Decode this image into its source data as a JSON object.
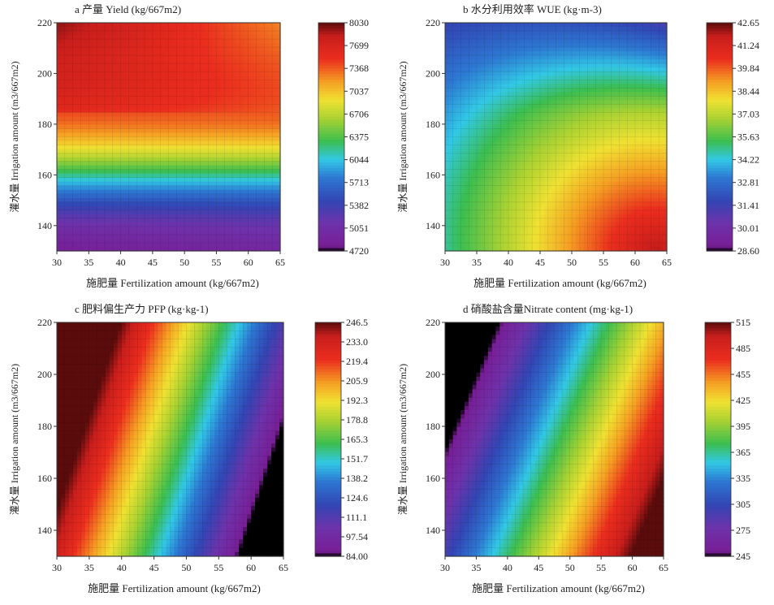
{
  "chart_data": [
    {
      "type": "heatmap",
      "panel": "a",
      "title": "a  产量 Yield (kg/667m2)",
      "xlabel": "施肥量  Fertilization amount (kg/667m2)",
      "ylabel": "灌水量 Irrigation amount (m3/667m2)",
      "xlim": [
        30,
        65
      ],
      "ylim": [
        130,
        220
      ],
      "xticks": [
        "30",
        "35",
        "40",
        "45",
        "50",
        "55",
        "60",
        "65"
      ],
      "yticks": [
        "140",
        "160",
        "180",
        "200",
        "220"
      ],
      "colorbar_range": [
        4720,
        8030
      ],
      "colorbar_ticks": [
        "8030",
        "7699",
        "7368",
        "7037",
        "6706",
        "6375",
        "6044",
        "5713",
        "5382",
        "5051",
        "4720"
      ],
      "description_values": {
        "top_left_corner": 8000,
        "top_band": 7200,
        "middle_band": 6044,
        "low_band": 5200,
        "bottom": 4800
      }
    },
    {
      "type": "heatmap",
      "panel": "b",
      "title": "b  水分利用效率 WUE (kg·m-3)",
      "xlabel": "施肥量  Fertilization amount (kg/667m2)",
      "ylabel": "灌水量 Irrigation amount (m3/667m2)",
      "xlim": [
        30,
        65
      ],
      "ylim": [
        130,
        220
      ],
      "xticks": [
        "30",
        "35",
        "40",
        "45",
        "50",
        "55",
        "60",
        "65"
      ],
      "yticks": [
        "140",
        "160",
        "180",
        "200",
        "220"
      ],
      "colorbar_range": [
        28.6,
        42.65
      ],
      "colorbar_ticks": [
        "42.65",
        "41.24",
        "39.84",
        "38.44",
        "37.03",
        "35.63",
        "34.22",
        "32.81",
        "31.41",
        "30.01",
        "28.60"
      ],
      "description_values": {
        "bottom_right_corner": 42.5,
        "center_right": 39,
        "top_right_corner": 29,
        "left_edge": 33
      }
    },
    {
      "type": "heatmap",
      "panel": "c",
      "title": "c  肥料偏生产力 PFP (kg·kg-1)",
      "xlabel": "施肥量  Fertilization amount (kg/667m2)",
      "ylabel": "灌水量 Irrigation amount (m3/667m2)",
      "xlim": [
        30,
        65
      ],
      "ylim": [
        130,
        220
      ],
      "xticks": [
        "30",
        "35",
        "40",
        "45",
        "50",
        "55",
        "60",
        "65"
      ],
      "yticks": [
        "140",
        "160",
        "180",
        "200",
        "220"
      ],
      "colorbar_range": [
        84.0,
        246.5
      ],
      "colorbar_ticks": [
        "246.5",
        "233.0",
        "219.4",
        "205.9",
        "192.3",
        "178.8",
        "165.3",
        "151.7",
        "138.2",
        "124.6",
        "111.1",
        "97.54",
        "84.00"
      ],
      "description_values": {
        "top_left_corner": 246,
        "bottom_right_corner": 95
      }
    },
    {
      "type": "heatmap",
      "panel": "d",
      "title": "d  硝酸盐含量Nitrate content (mg·kg-1)",
      "xlabel": "施肥量  Fertilization amount (kg/667m2)",
      "ylabel": "灌水量 Irrigation amount (m3/667m2)",
      "xlim": [
        30,
        65
      ],
      "ylim": [
        130,
        220
      ],
      "xticks": [
        "30",
        "35",
        "40",
        "45",
        "50",
        "55",
        "60",
        "65"
      ],
      "yticks": [
        "140",
        "160",
        "180",
        "200",
        "220"
      ],
      "colorbar_range": [
        245,
        530
      ],
      "colorbar_ticks": [
        "515",
        "485",
        "455",
        "425",
        "395",
        "365",
        "335",
        "305",
        "275",
        "245"
      ],
      "description_values": {
        "top_left_corner": 250,
        "bottom_right_corner": 528
      }
    }
  ],
  "colors": {
    "scale": [
      "#000000",
      "#7a1fa2",
      "#3a3fb0",
      "#2f6fd0",
      "#2ec8e8",
      "#3fbf4a",
      "#c8dc30",
      "#f4e030",
      "#f6a020",
      "#e8281e",
      "#d4201e",
      "#5a0a0a"
    ]
  }
}
